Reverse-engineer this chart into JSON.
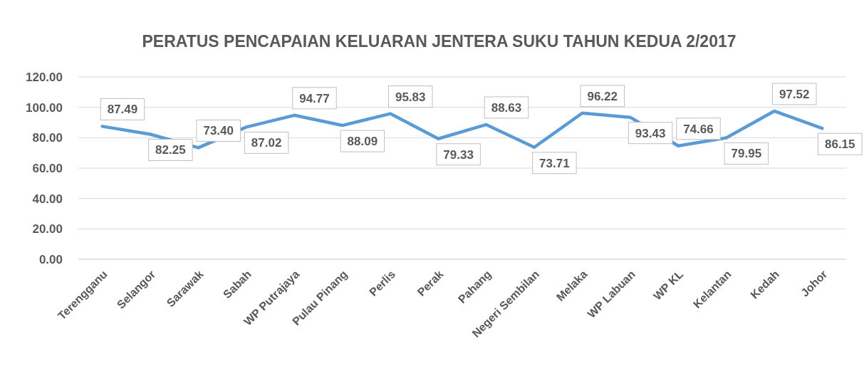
{
  "chart_data": {
    "type": "line",
    "title": "PERATUS PENCAPAIAN KELUARAN JENTERA SUKU TAHUN KEDUA 2/2017",
    "categories": [
      "Terengganu",
      "Selangor",
      "Sarawak",
      "Sabah",
      "WP Putrajaya",
      "Pulau Pinang",
      "Perlis",
      "Perak",
      "Pahang",
      "Negeri Sembilan",
      "Melaka",
      "WP Labuan",
      "WP KL",
      "Kelantan",
      "Kedah",
      "Johor"
    ],
    "series": [
      {
        "color": "#5b9bd5",
        "values": [
          87.49,
          82.25,
          73.4,
          87.02,
          94.77,
          88.09,
          95.83,
          79.33,
          88.63,
          73.71,
          96.22,
          93.43,
          74.66,
          79.95,
          97.52,
          86.15
        ],
        "value_labels": [
          "87.49",
          "82.25",
          "73.40",
          "87.02",
          "94.77",
          "88.09",
          "95.83",
          "79.33",
          "88.63",
          "73.71",
          "96.22",
          "93.43",
          "74.66",
          "79.95",
          "97.52",
          "86.15"
        ]
      }
    ],
    "ylim": [
      0,
      120
    ],
    "yticks": [
      {
        "value": 0,
        "label": "0.00"
      },
      {
        "value": 20,
        "label": "20.00"
      },
      {
        "value": 40,
        "label": "40.00"
      },
      {
        "value": 60,
        "label": "60.00"
      },
      {
        "value": 80,
        "label": "80.00"
      },
      {
        "value": 100,
        "label": "100.00"
      },
      {
        "value": 120,
        "label": "120.00"
      }
    ],
    "grid": "y",
    "marker": "none",
    "line_style": "solid"
  }
}
